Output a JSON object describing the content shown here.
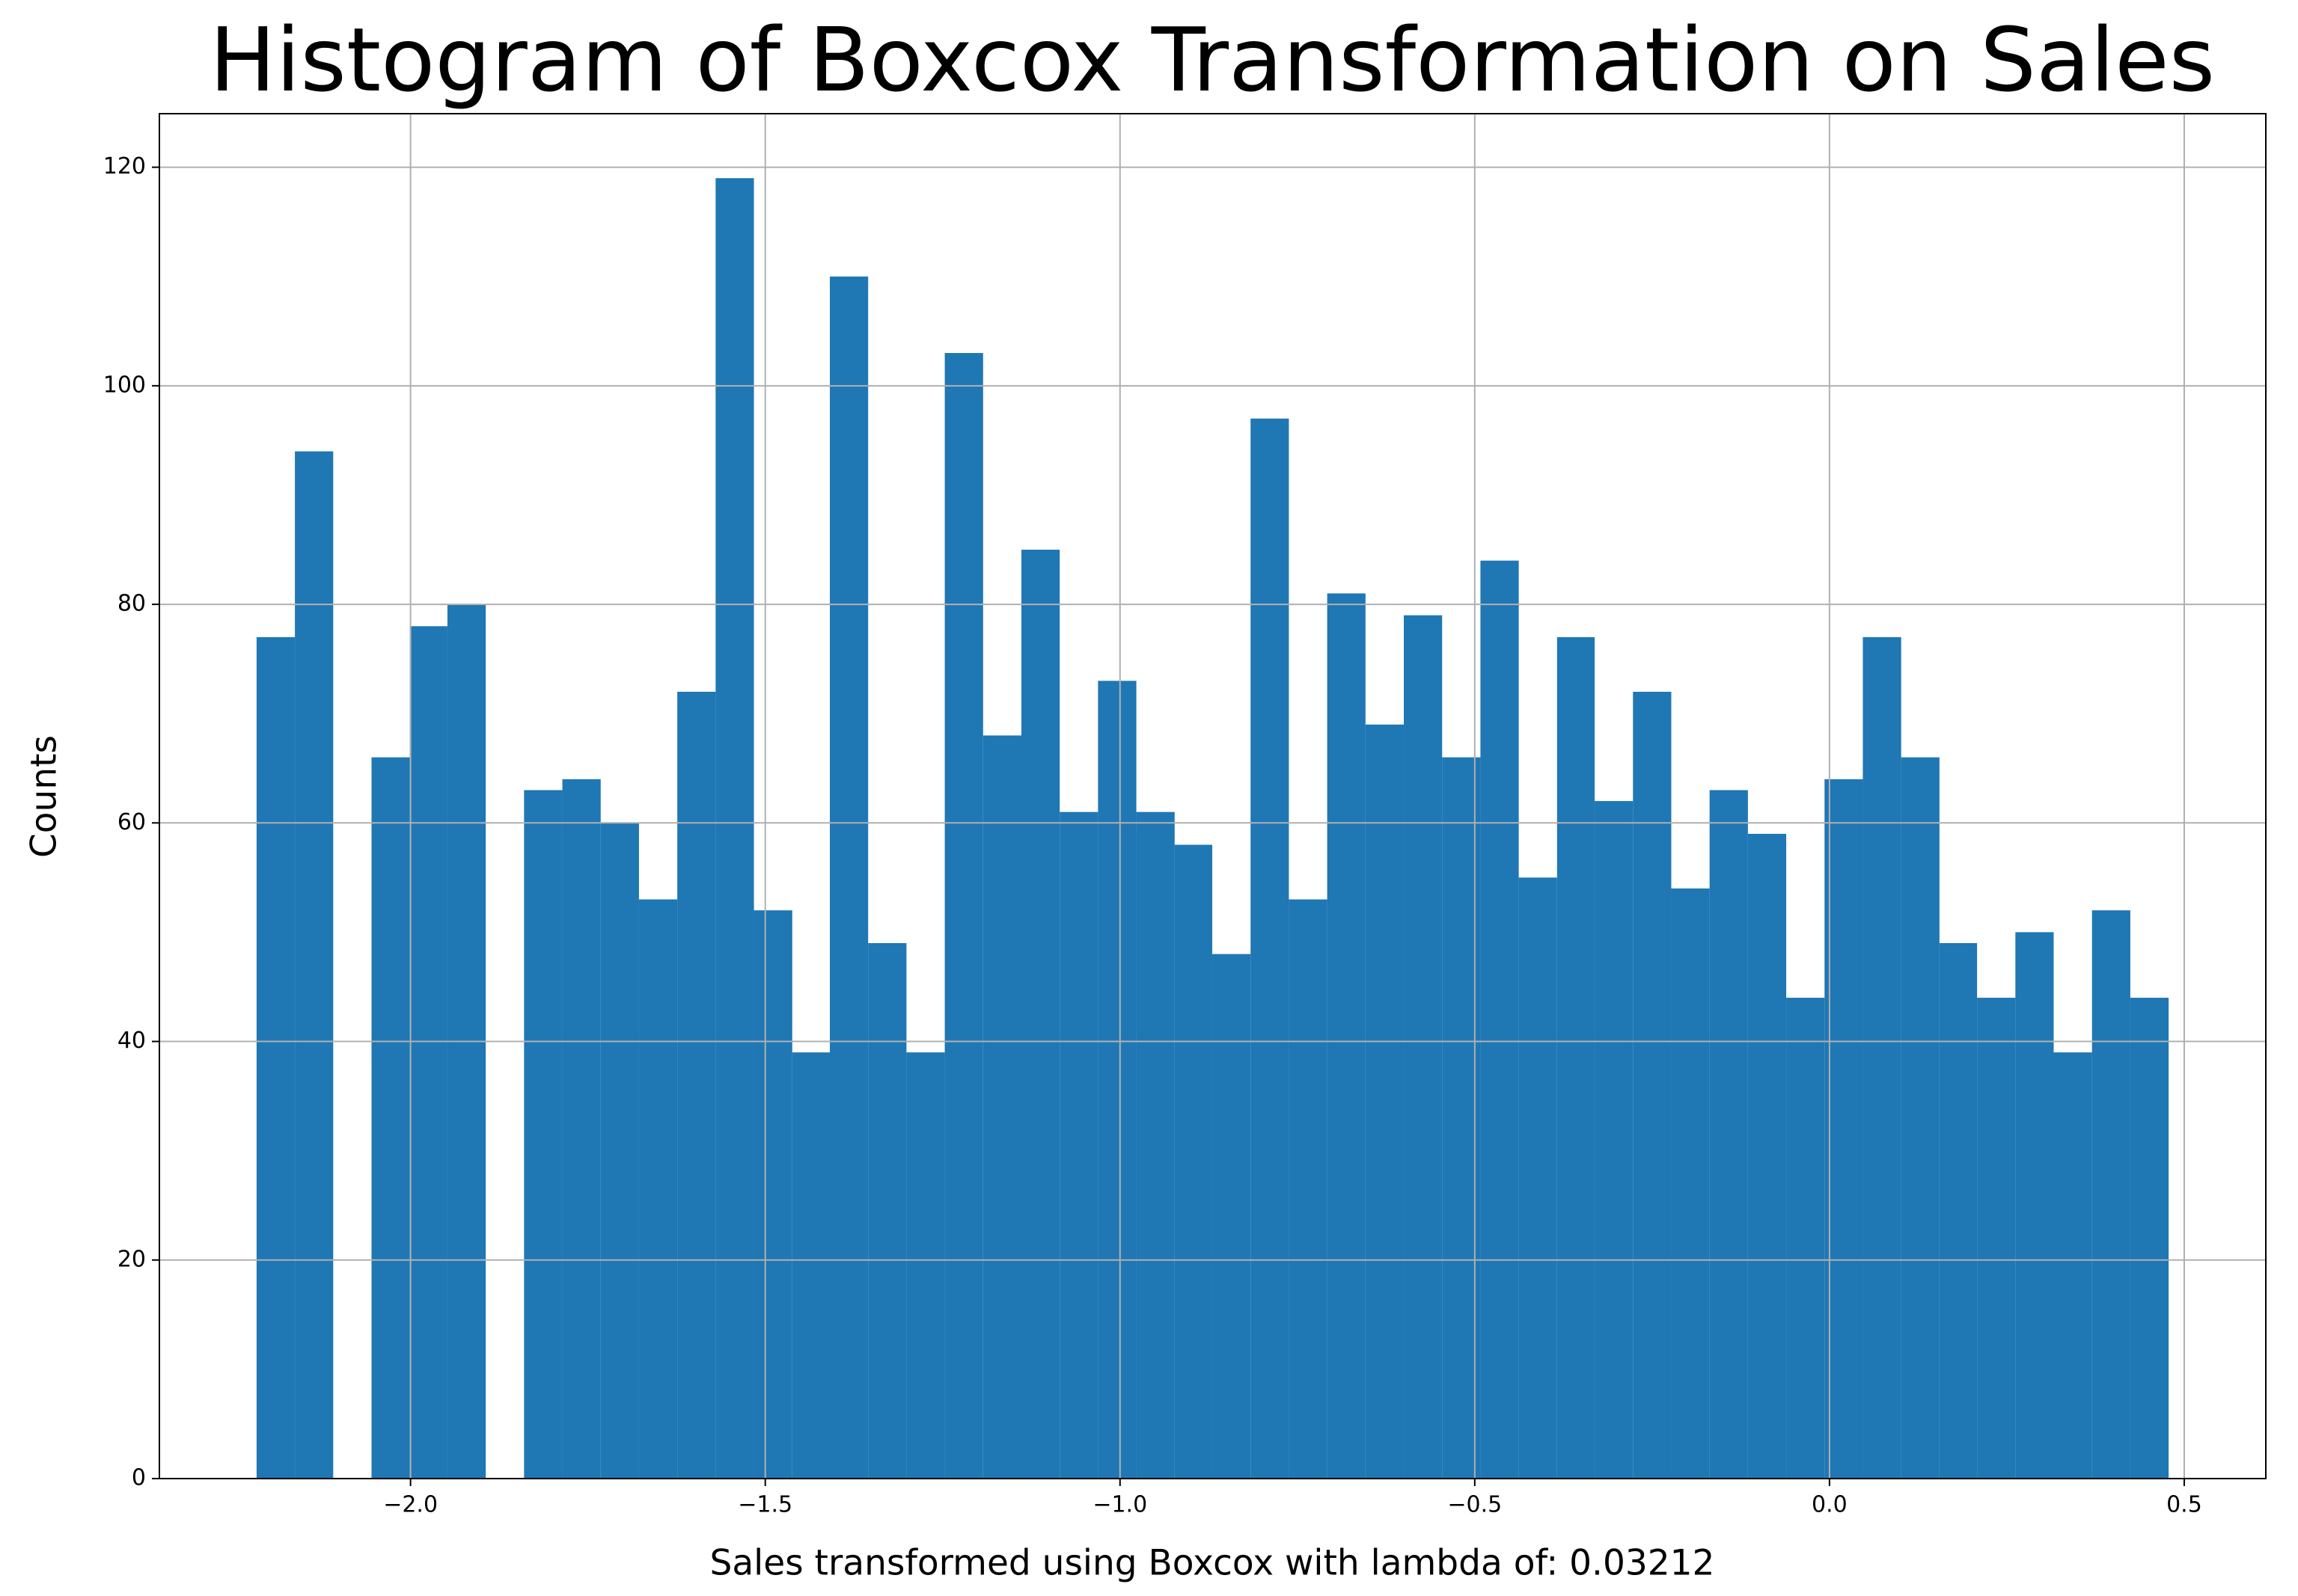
{
  "chart_data": {
    "type": "histogram",
    "title": "Histogram of Boxcox Transformation on Sales",
    "xlabel": "Sales transformed using Boxcox with lambda of: 0.03212",
    "ylabel": "Counts",
    "bins": [
      -2.217,
      -2.163,
      -2.109,
      -2.055,
      -2.001,
      -1.948,
      -1.894,
      -1.84,
      -1.786,
      -1.732,
      -1.678,
      -1.624,
      -1.57,
      -1.516,
      -1.462,
      -1.409,
      -1.355,
      -1.301,
      -1.247,
      -1.193,
      -1.139,
      -1.085,
      -1.031,
      -0.977,
      -0.923,
      -0.87,
      -0.816,
      -0.762,
      -0.708,
      -0.654,
      -0.6,
      -0.546,
      -0.492,
      -0.438,
      -0.384,
      -0.331,
      -0.277,
      -0.223,
      -0.169,
      -0.115,
      -0.061,
      -0.007,
      0.047,
      0.101,
      0.155,
      0.208,
      0.262,
      0.316,
      0.37,
      0.424,
      0.478
    ],
    "values": [
      77,
      94,
      0,
      66,
      78,
      80,
      0,
      63,
      64,
      60,
      53,
      72,
      119,
      52,
      39,
      110,
      49,
      39,
      103,
      68,
      85,
      61,
      73,
      61,
      58,
      48,
      97,
      53,
      81,
      69,
      79,
      66,
      84,
      55,
      77,
      62,
      72,
      54,
      63,
      59,
      44,
      64,
      77,
      66,
      49,
      44,
      50,
      39,
      52,
      44
    ],
    "color": "#1f77b4",
    "xlim": [
      -2.354,
      0.615
    ],
    "ylim": [
      0,
      124.9
    ],
    "xticks": [
      {
        "value": -2.0,
        "label": "−2.0"
      },
      {
        "value": -1.5,
        "label": "−1.5"
      },
      {
        "value": -1.0,
        "label": "−1.0"
      },
      {
        "value": -0.5,
        "label": "−0.5"
      },
      {
        "value": 0.0,
        "label": "0.0"
      },
      {
        "value": 0.5,
        "label": "0.5"
      }
    ],
    "yticks": [
      0,
      20,
      40,
      60,
      80,
      100,
      120
    ],
    "grid": true
  }
}
